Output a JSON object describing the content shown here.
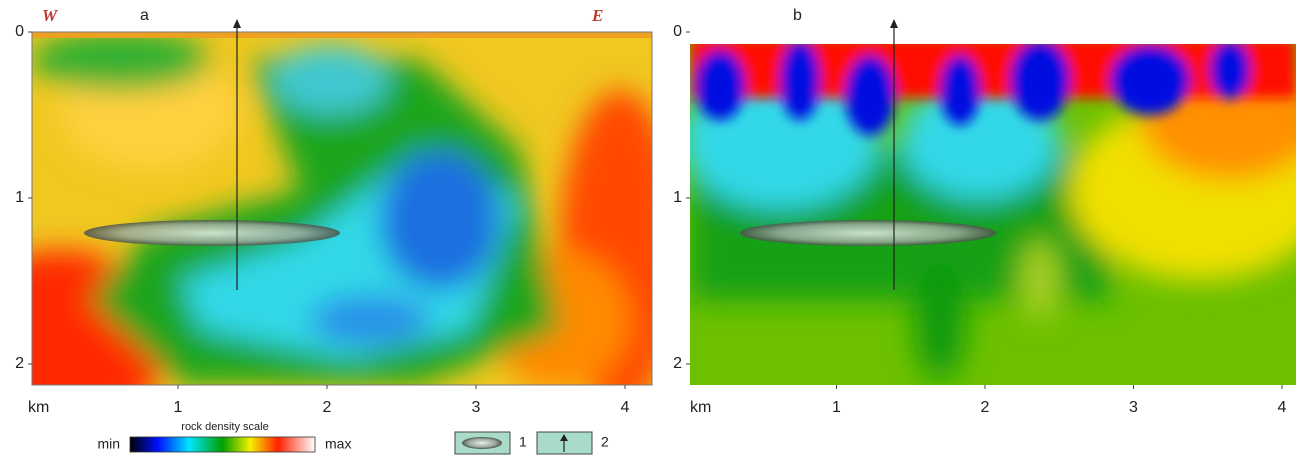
{
  "panels": [
    {
      "label": "a",
      "west": "W",
      "east": "E",
      "yticks": [
        0,
        1,
        2
      ],
      "xticks": [
        1,
        2,
        3,
        4
      ],
      "x_unit": "km"
    },
    {
      "label": "b",
      "yticks": [
        0,
        1,
        2
      ],
      "xticks": [
        1,
        2,
        3,
        4
      ],
      "x_unit": "km"
    }
  ],
  "legend": {
    "scale_title": "rock density scale",
    "min": "min",
    "max": "max",
    "items": [
      "1",
      "2"
    ]
  }
}
